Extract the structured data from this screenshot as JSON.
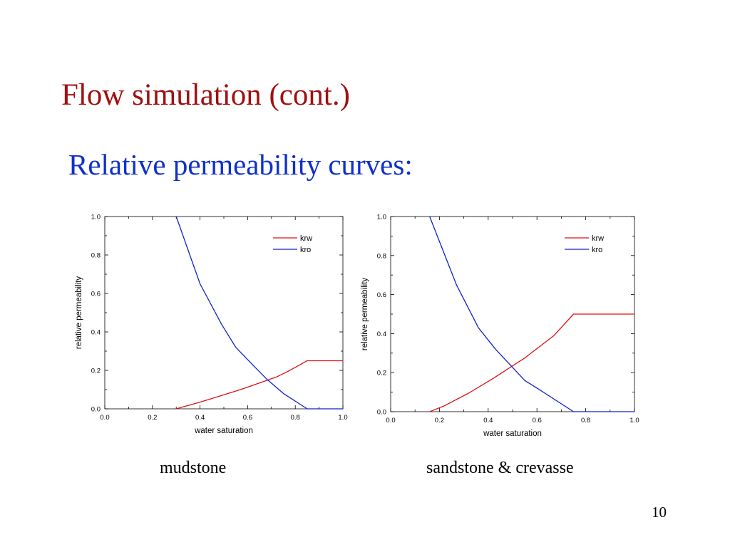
{
  "slide": {
    "title": "Flow simulation (cont.)",
    "subtitle": "Relative permeability curves:",
    "title_color": "#a01010",
    "subtitle_color": "#1030c8",
    "page_number": "10"
  },
  "captions": [
    "mudstone",
    "sandstone & crevasse"
  ],
  "chart_data": [
    {
      "type": "line",
      "title": "",
      "xlabel": "water saturation",
      "ylabel": "relative permeability",
      "xlim": [
        0.0,
        1.0
      ],
      "ylim": [
        0.0,
        1.0
      ],
      "xticks": [
        "0.0",
        "0.2",
        "0.4",
        "0.6",
        "0.8",
        "1.0"
      ],
      "yticks": [
        "0.0",
        "0.2",
        "0.4",
        "0.6",
        "0.8",
        "1.0"
      ],
      "grid": false,
      "legend": "top-right",
      "series": [
        {
          "name": "krw",
          "color": "#dd1111",
          "x": [
            0.3,
            0.4,
            0.48,
            0.57,
            0.65,
            0.72,
            0.77,
            0.85,
            1.0
          ],
          "y": [
            0.0,
            0.035,
            0.065,
            0.1,
            0.135,
            0.165,
            0.195,
            0.25,
            0.25
          ]
        },
        {
          "name": "kro",
          "color": "#1122cc",
          "x": [
            0.3,
            0.4,
            0.49,
            0.55,
            0.62,
            0.68,
            0.75,
            0.85,
            1.0
          ],
          "y": [
            1.0,
            0.65,
            0.44,
            0.32,
            0.23,
            0.155,
            0.08,
            0.0,
            0.0
          ]
        }
      ]
    },
    {
      "type": "line",
      "title": "",
      "xlabel": "water saturation",
      "ylabel": "relative permeability",
      "xlim": [
        0.0,
        1.0
      ],
      "ylim": [
        0.0,
        1.0
      ],
      "xticks": [
        "0.0",
        "0.2",
        "0.4",
        "0.6",
        "0.8",
        "1.0"
      ],
      "yticks": [
        "0.0",
        "0.2",
        "0.4",
        "0.6",
        "0.8",
        "1.0"
      ],
      "grid": false,
      "legend": "top-right",
      "series": [
        {
          "name": "krw",
          "color": "#dd1111",
          "x": [
            0.16,
            0.22,
            0.32,
            0.42,
            0.55,
            0.67,
            0.75,
            1.0
          ],
          "y": [
            0.0,
            0.03,
            0.095,
            0.17,
            0.275,
            0.39,
            0.5,
            0.5
          ]
        },
        {
          "name": "kro",
          "color": "#1122cc",
          "x": [
            0.16,
            0.27,
            0.36,
            0.43,
            0.55,
            0.62,
            0.75,
            1.0
          ],
          "y": [
            1.0,
            0.65,
            0.43,
            0.32,
            0.16,
            0.105,
            0.0,
            0.0
          ]
        }
      ]
    }
  ]
}
